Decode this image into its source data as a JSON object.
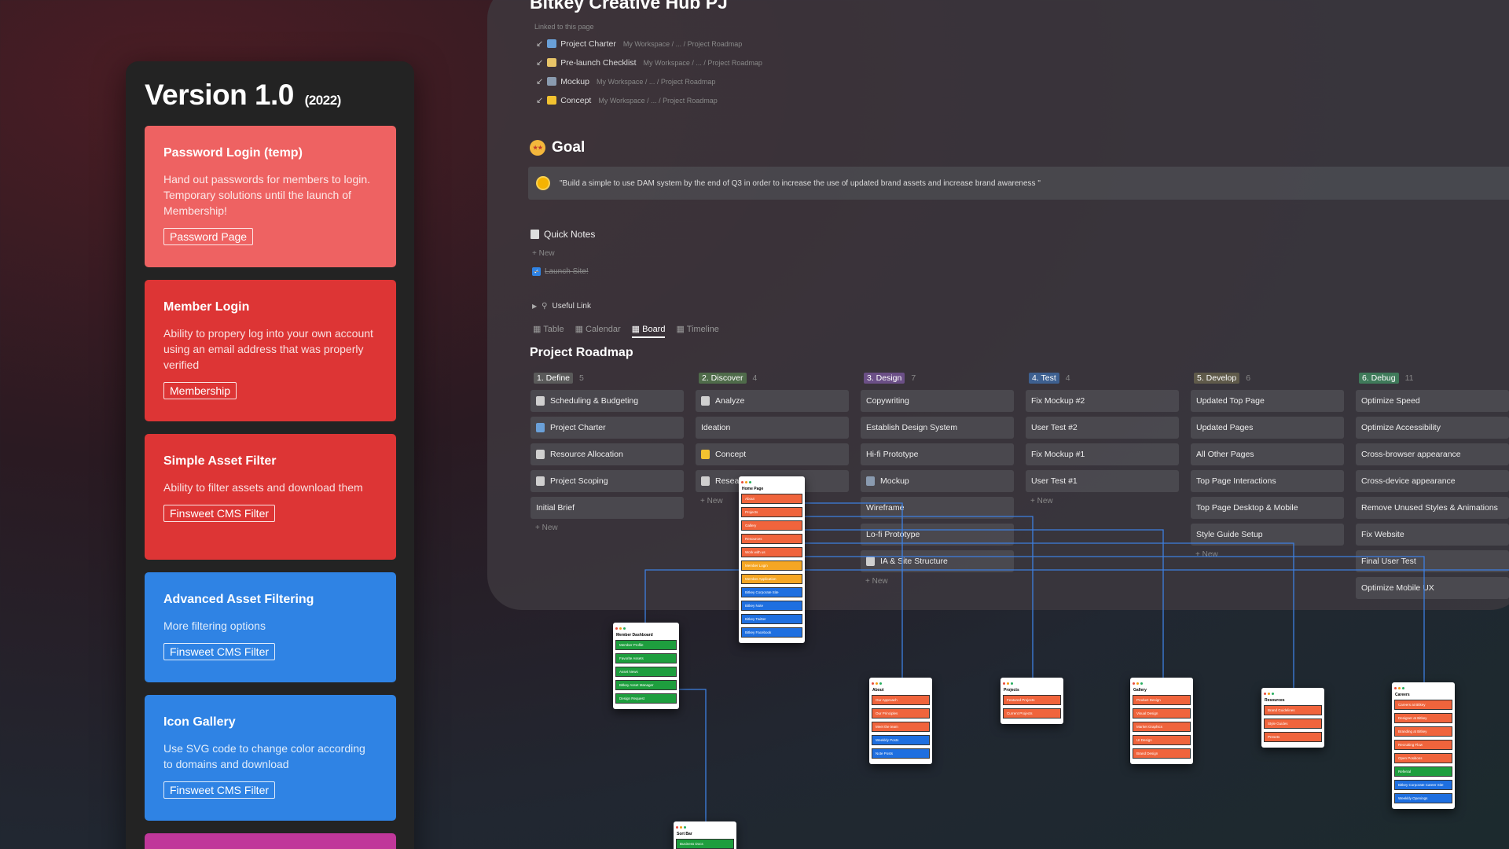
{
  "left_panel": {
    "version": "Version 1.0",
    "year": "(2022)",
    "cards": [
      {
        "title": "Password Login (temp)",
        "desc": "Hand out passwords for members to login. Temporary solutions until the launch of Membership!",
        "tag": "Password Page",
        "color": "#ee6262"
      },
      {
        "title": "Member Login",
        "desc": "Ability to propery log into your own account using an email address that was properly verified",
        "tag": "Membership",
        "color": "#dd3535"
      },
      {
        "title": "Simple Asset Filter",
        "desc": "Ability to filter assets and download them",
        "tag": "Finsweet CMS Filter",
        "color": "#dd3535"
      },
      {
        "title": "Advanced Asset Filtering",
        "desc": "More filtering options",
        "tag": "Finsweet CMS Filter",
        "color": "#2f83e4"
      },
      {
        "title": "Icon Gallery",
        "desc": "Use SVG code to change color according to domains and download",
        "tag": "Finsweet CMS Filter",
        "color": "#2f83e4"
      }
    ],
    "bottom_color": "#c0379a"
  },
  "notion": {
    "title": "Bitkey Creative Hub PJ",
    "linked_label": "Linked to this page",
    "linked": [
      {
        "name": "Project Charter",
        "path": "My Workspace / ... / Project Roadmap",
        "icon_color": "#6aa0d8"
      },
      {
        "name": "Pre-launch Checklist",
        "path": "My Workspace / ... / Project Roadmap",
        "icon_color": "#e8c468"
      },
      {
        "name": "Mockup",
        "path": "My Workspace / ... / Project Roadmap",
        "icon_color": "#8a9bb0"
      },
      {
        "name": "Concept",
        "path": "My Workspace / ... / Project Roadmap",
        "icon_color": "#f2c230"
      }
    ],
    "goal_title": "Goal",
    "goal_quote": "\"Build a simple to use DAM system by the end of Q3 in order to increase the use of updated brand assets and increase brand awareness \"",
    "quick_notes": "Quick Notes",
    "new_label": "New",
    "checkbox_item": "Launch Site!",
    "useful_link": "Useful Link",
    "views": [
      "Table",
      "Calendar",
      "Board",
      "Timeline"
    ],
    "active_view": "Board",
    "roadmap_title": "Project Roadmap"
  },
  "board": [
    {
      "label": "1. Define",
      "count": "5",
      "color": "#5a5a5a",
      "items": [
        "Scheduling & Budgeting",
        "Project Charter",
        "Resource Allocation",
        "Project Scoping",
        "Initial Brief"
      ],
      "icons": [
        "doc",
        "map",
        "doc",
        "doc",
        ""
      ],
      "new": true
    },
    {
      "label": "2. Discover",
      "count": "4",
      "color": "#4f6b4a",
      "items": [
        "Analyze",
        "Ideation",
        "Concept",
        "Resea"
      ],
      "icons": [
        "doc",
        "",
        "bulb",
        "doc"
      ],
      "new": true
    },
    {
      "label": "3. Design",
      "count": "7",
      "color": "#6b4f86",
      "items": [
        "Copywriting",
        "Establish Design System",
        "Hi-fi Prototype",
        "Mockup",
        "Wireframe",
        "Lo-fi Prototype",
        "IA & Site Structure"
      ],
      "icons": [
        "",
        "",
        "",
        "img",
        "",
        "",
        "doc"
      ],
      "new": true
    },
    {
      "label": "4. Test",
      "count": "4",
      "color": "#3e6090",
      "items": [
        "Fix Mockup #2",
        "User Test #2",
        "Fix Mockup #1",
        "User Test #1"
      ],
      "icons": [
        "",
        "",
        "",
        ""
      ],
      "new": true
    },
    {
      "label": "5. Develop",
      "count": "6",
      "color": "#5f5a4a",
      "items": [
        "Updated Top Page",
        "Updated Pages",
        "All Other Pages",
        "Top Page Interactions",
        "Top Page Desktop & Mobile",
        "Style Guide Setup"
      ],
      "icons": [
        "",
        "",
        "",
        "",
        "",
        ""
      ],
      "new": true
    },
    {
      "label": "6. Debug",
      "count": "11",
      "color": "#3f7a5a",
      "items": [
        "Optimize Speed",
        "Optimize Accessibility",
        "Cross-browser appearance",
        "Cross-device appearance",
        "Remove Unused Styles & Animations",
        "Fix Website",
        "Final User Test",
        "Optimize Mobile UX"
      ],
      "icons": [
        "",
        "",
        "",
        "",
        "",
        "",
        "",
        ""
      ],
      "new": false
    }
  ],
  "sitemap": [
    {
      "title": "Home Page",
      "items": [
        [
          "About",
          "#f0643c"
        ],
        [
          "Projects",
          "#f0643c"
        ],
        [
          "Gallery",
          "#f0643c"
        ],
        [
          "Resources",
          "#f0643c"
        ],
        [
          "Work with us",
          "#f0643c"
        ],
        [
          "Member Login",
          "#f5a623"
        ],
        [
          "Member Application",
          "#f5a623"
        ],
        [
          "Bitkey Corporate Site",
          "#1e6fe0"
        ],
        [
          "Bitkey Note",
          "#1e6fe0"
        ],
        [
          "Bitkey Twitter",
          "#1e6fe0"
        ],
        [
          "Bitkey Facebook",
          "#1e6fe0"
        ]
      ]
    },
    {
      "title": "Member Dashboard",
      "items": [
        [
          "Member Profile",
          "#1e9e3e"
        ],
        [
          "Favorite Assets",
          "#1e9e3e"
        ],
        [
          "Asset News",
          "#1e9e3e"
        ],
        [
          "Bitkey Asset Manager",
          "#1e9e3e"
        ],
        [
          "Design Request",
          "#1e9e3e"
        ]
      ]
    },
    {
      "title": "About",
      "items": [
        [
          "Our Approach",
          "#f0643c"
        ],
        [
          "Our Principles",
          "#f0643c"
        ],
        [
          "Meet the team",
          "#f0643c"
        ],
        [
          "Weekkly Posts",
          "#1e6fe0"
        ],
        [
          "Note Posts",
          "#1e6fe0"
        ]
      ]
    },
    {
      "title": "Projects",
      "items": [
        [
          "Featured Projects",
          "#f0643c"
        ],
        [
          "Current Projects",
          "#f0643c"
        ]
      ]
    },
    {
      "title": "Gallery",
      "items": [
        [
          "Product Design",
          "#f0643c"
        ],
        [
          "Visual Design",
          "#f0643c"
        ],
        [
          "Market Graphics",
          "#f0643c"
        ],
        [
          "UI Design",
          "#f0643c"
        ],
        [
          "Brand Design",
          "#f0643c"
        ]
      ]
    },
    {
      "title": "Resources",
      "items": [
        [
          "Brand Guidelines",
          "#f0643c"
        ],
        [
          "Style Guides",
          "#f0643c"
        ],
        [
          "Presets",
          "#f0643c"
        ]
      ]
    },
    {
      "title": "Careers",
      "items": [
        [
          "Careers at Bitkey",
          "#f0643c"
        ],
        [
          "Designer at Bitkey",
          "#f0643c"
        ],
        [
          "Branding at Bitkey",
          "#f0643c"
        ],
        [
          "Recruiting Flow",
          "#f0643c"
        ],
        [
          "Open Positions",
          "#f0643c"
        ],
        [
          "Referral",
          "#1e9e3e"
        ],
        [
          "Bitkey Corporate Career Site",
          "#1e6fe0"
        ],
        [
          "Weekkly Openings",
          "#1e6fe0"
        ]
      ]
    },
    {
      "title": "Sort Bar",
      "items": [
        [
          "Business Docs",
          "#1e9e3e"
        ]
      ]
    }
  ]
}
